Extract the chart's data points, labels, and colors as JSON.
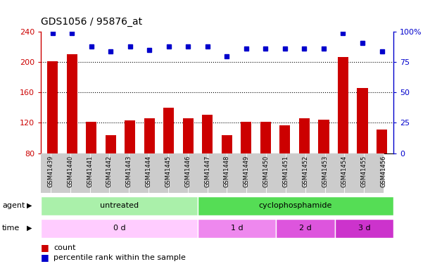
{
  "title": "GDS1056 / 95876_at",
  "samples": [
    "GSM41439",
    "GSM41440",
    "GSM41441",
    "GSM41442",
    "GSM41443",
    "GSM41444",
    "GSM41445",
    "GSM41446",
    "GSM41447",
    "GSM41448",
    "GSM41449",
    "GSM41450",
    "GSM41451",
    "GSM41452",
    "GSM41453",
    "GSM41454",
    "GSM41455",
    "GSM41456"
  ],
  "counts": [
    201,
    210,
    121,
    104,
    123,
    126,
    140,
    126,
    131,
    104,
    121,
    121,
    117,
    126,
    124,
    207,
    166,
    111
  ],
  "percentile_ranks": [
    99,
    99,
    88,
    84,
    88,
    85,
    88,
    88,
    88,
    80,
    86,
    86,
    86,
    86,
    86,
    99,
    91,
    84
  ],
  "ylim_left": [
    80,
    240
  ],
  "ylim_right": [
    0,
    100
  ],
  "yticks_left": [
    80,
    120,
    160,
    200,
    240
  ],
  "ytick_labels_left": [
    "80",
    "120",
    "160",
    "200",
    "240"
  ],
  "ytick_labels_right": [
    "0",
    "25",
    "50",
    "75",
    "100%"
  ],
  "bar_color": "#cc0000",
  "dot_color": "#0000cc",
  "agent_row": [
    {
      "label": "untreated",
      "start": 0,
      "end": 8,
      "color": "#aaf0aa"
    },
    {
      "label": "cyclophosphamide",
      "start": 8,
      "end": 18,
      "color": "#55dd55"
    }
  ],
  "time_colors": [
    "#ffccff",
    "#ee88ee",
    "#dd55dd",
    "#cc33cc"
  ],
  "time_row": [
    {
      "label": "0 d",
      "start": 0,
      "end": 8
    },
    {
      "label": "1 d",
      "start": 8,
      "end": 12
    },
    {
      "label": "2 d",
      "start": 12,
      "end": 15
    },
    {
      "label": "3 d",
      "start": 15,
      "end": 18
    }
  ],
  "xtick_bg": "#dddddd",
  "legend_count_color": "#cc0000",
  "legend_dot_color": "#0000cc"
}
